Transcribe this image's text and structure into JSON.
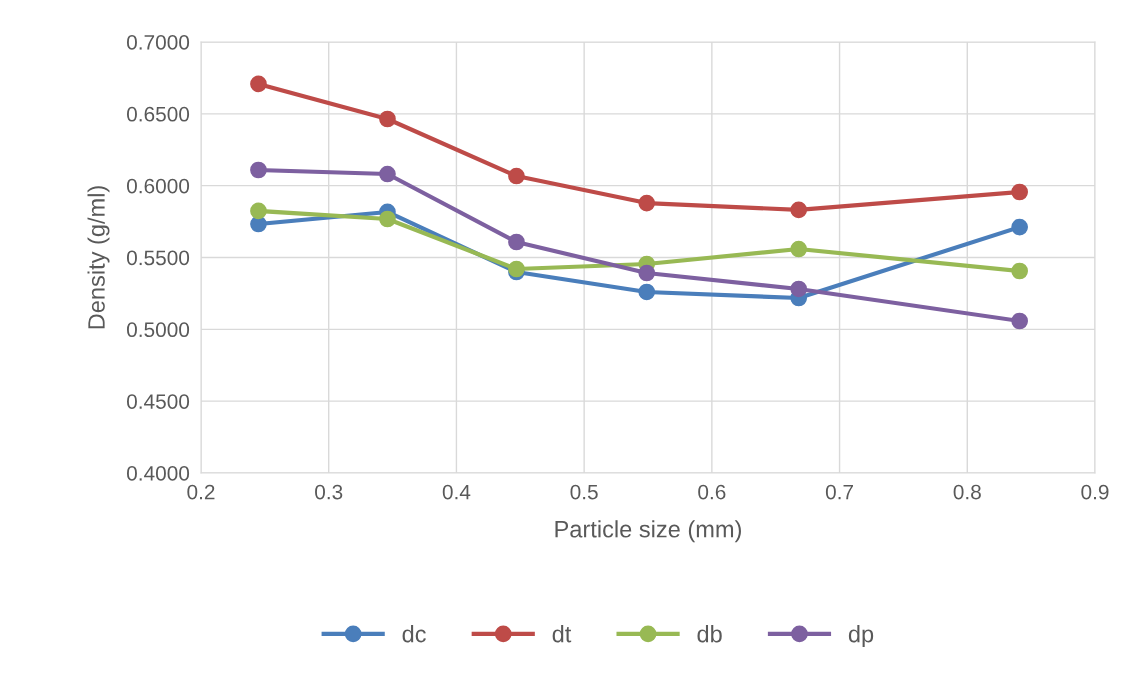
{
  "chart_data": {
    "type": "line",
    "xlabel": "Particle size (mm)",
    "ylabel": "Density (g/ml)",
    "x": [
      0.245,
      0.346,
      0.447,
      0.549,
      0.668,
      0.841
    ],
    "series": [
      {
        "name": "dc",
        "color": "#4a7ebb",
        "values": [
          0.5733,
          0.5817,
          0.5399,
          0.526,
          0.5218,
          0.5712
        ]
      },
      {
        "name": "dt",
        "color": "#be4b48",
        "values": [
          0.6708,
          0.6464,
          0.6067,
          0.5879,
          0.5831,
          0.5956
        ]
      },
      {
        "name": "db",
        "color": "#98b954",
        "values": [
          0.5824,
          0.5768,
          0.542,
          0.5455,
          0.5559,
          0.5406
        ]
      },
      {
        "name": "dp",
        "color": "#7d60a0",
        "values": [
          0.6109,
          0.6081,
          0.5608,
          0.5392,
          0.5281,
          0.5058
        ]
      }
    ],
    "xlim": [
      0.2,
      0.9
    ],
    "xticks": [
      0.2,
      0.3,
      0.4,
      0.5,
      0.6,
      0.7,
      0.8,
      0.9
    ],
    "ylim": [
      0.4,
      0.7
    ],
    "yticks": [
      {
        "value": 0.4,
        "label": "0.4000"
      },
      {
        "value": 0.45,
        "label": "0.4500"
      },
      {
        "value": 0.5,
        "label": "0.5000"
      },
      {
        "value": 0.55,
        "label": "0.5500"
      },
      {
        "value": 0.6,
        "label": "0.6000"
      },
      {
        "value": 0.65,
        "label": "0.6500"
      },
      {
        "value": 0.7,
        "label": "0.7000"
      }
    ],
    "grid": true,
    "legend": "bottom",
    "marker": "circle",
    "line_style": "solid"
  }
}
